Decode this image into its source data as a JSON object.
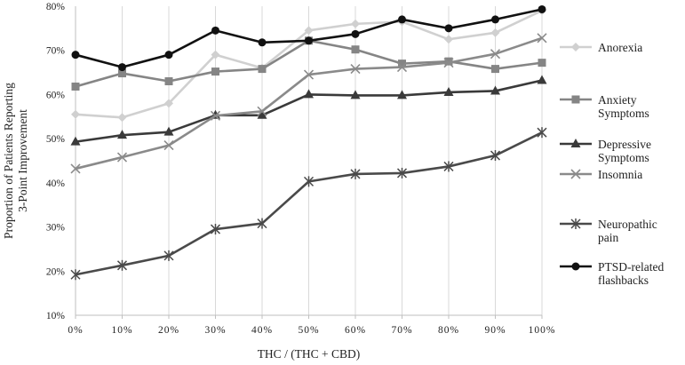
{
  "chart_data": {
    "type": "line",
    "xlabel": "THC / (THC + CBD)",
    "ylabel_lines": [
      "Proportion of Patients Reporting",
      "3-Point Improvement"
    ],
    "categories": [
      "0%",
      "10%",
      "20%",
      "30%",
      "40%",
      "50%",
      "60%",
      "70%",
      "80%",
      "90%",
      "100%"
    ],
    "y_ticks": [
      "10%",
      "20%",
      "30%",
      "40%",
      "50%",
      "60%",
      "70%",
      "80%"
    ],
    "ylim": [
      10,
      80
    ],
    "grid": "vertical",
    "legend_position": "right",
    "series": [
      {
        "name_lines": [
          "Anorexia"
        ],
        "color": "#d0d0d0",
        "marker": "diamond",
        "values": [
          55.5,
          54.8,
          58,
          69,
          66,
          74.5,
          76,
          76.5,
          72.5,
          74,
          79
        ]
      },
      {
        "name_lines": [
          "Anxiety",
          "Symptoms"
        ],
        "color": "#858585",
        "marker": "square",
        "values": [
          61.8,
          64.8,
          63,
          65.2,
          65.8,
          72.2,
          70.2,
          67,
          67.5,
          65.8,
          67.2
        ]
      },
      {
        "name_lines": [
          "Depressive",
          "Symptoms"
        ],
        "color": "#3a3a3a",
        "marker": "triangle",
        "values": [
          49.3,
          50.8,
          51.5,
          55.3,
          55.3,
          60,
          59.8,
          59.8,
          60.5,
          60.8,
          63.2
        ]
      },
      {
        "name_lines": [
          "Insomnia"
        ],
        "color": "#8a8a8a",
        "marker": "x",
        "values": [
          43.2,
          45.8,
          48.5,
          55.2,
          56.2,
          64.5,
          65.8,
          66.2,
          67.2,
          69.2,
          72.8
        ]
      },
      {
        "name_lines": [
          "Neuropathic",
          "pain"
        ],
        "color": "#4a4a4a",
        "marker": "star",
        "values": [
          19.2,
          21.3,
          23.5,
          29.5,
          30.8,
          40.3,
          42,
          42.2,
          43.7,
          46.2,
          51.4
        ]
      },
      {
        "name_lines": [
          "PTSD-related",
          "flashbacks"
        ],
        "color": "#111111",
        "marker": "circle",
        "values": [
          69,
          66.2,
          69,
          74.5,
          71.8,
          72.2,
          73.7,
          77,
          75,
          77,
          79.3
        ]
      }
    ]
  }
}
